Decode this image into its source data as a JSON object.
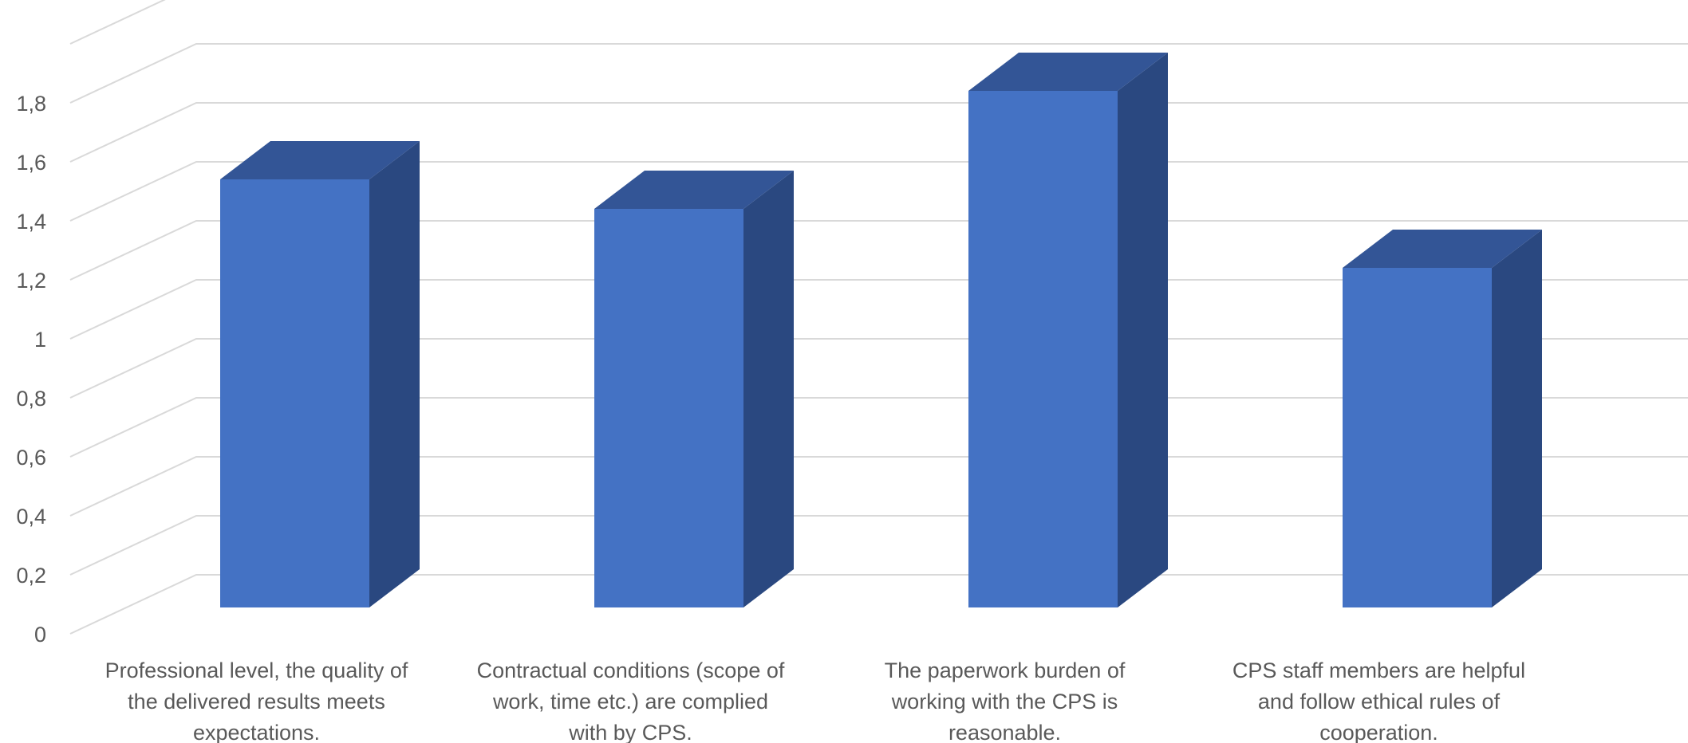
{
  "chart_data": {
    "type": "bar",
    "title": "",
    "xlabel": "",
    "ylabel": "",
    "ylim": [
      0,
      2
    ],
    "y_ticks": [
      "0",
      "0,2",
      "0,4",
      "0,6",
      "0,8",
      "1",
      "1,2",
      "1,4",
      "1,6",
      "1,8"
    ],
    "grid": true,
    "legend": "none",
    "style": "3d-column",
    "categories": [
      [
        "Professional level, the quality of",
        "the delivered results meets",
        "expectations."
      ],
      [
        "Contractual conditions (scope of",
        "work, time etc.) are complied",
        "with by CPS."
      ],
      [
        "The paperwork burden of",
        "working with the CPS is",
        "reasonable."
      ],
      [
        "CPS staff members are helpful",
        "and follow ethical rules of",
        "cooperation."
      ]
    ],
    "values": [
      1.5,
      1.4,
      1.8,
      1.2
    ],
    "colors": {
      "front": "#4472c4",
      "top": "#335596",
      "side": "#2a4880",
      "grid": "#d9d9d9",
      "text": "#595959"
    }
  }
}
